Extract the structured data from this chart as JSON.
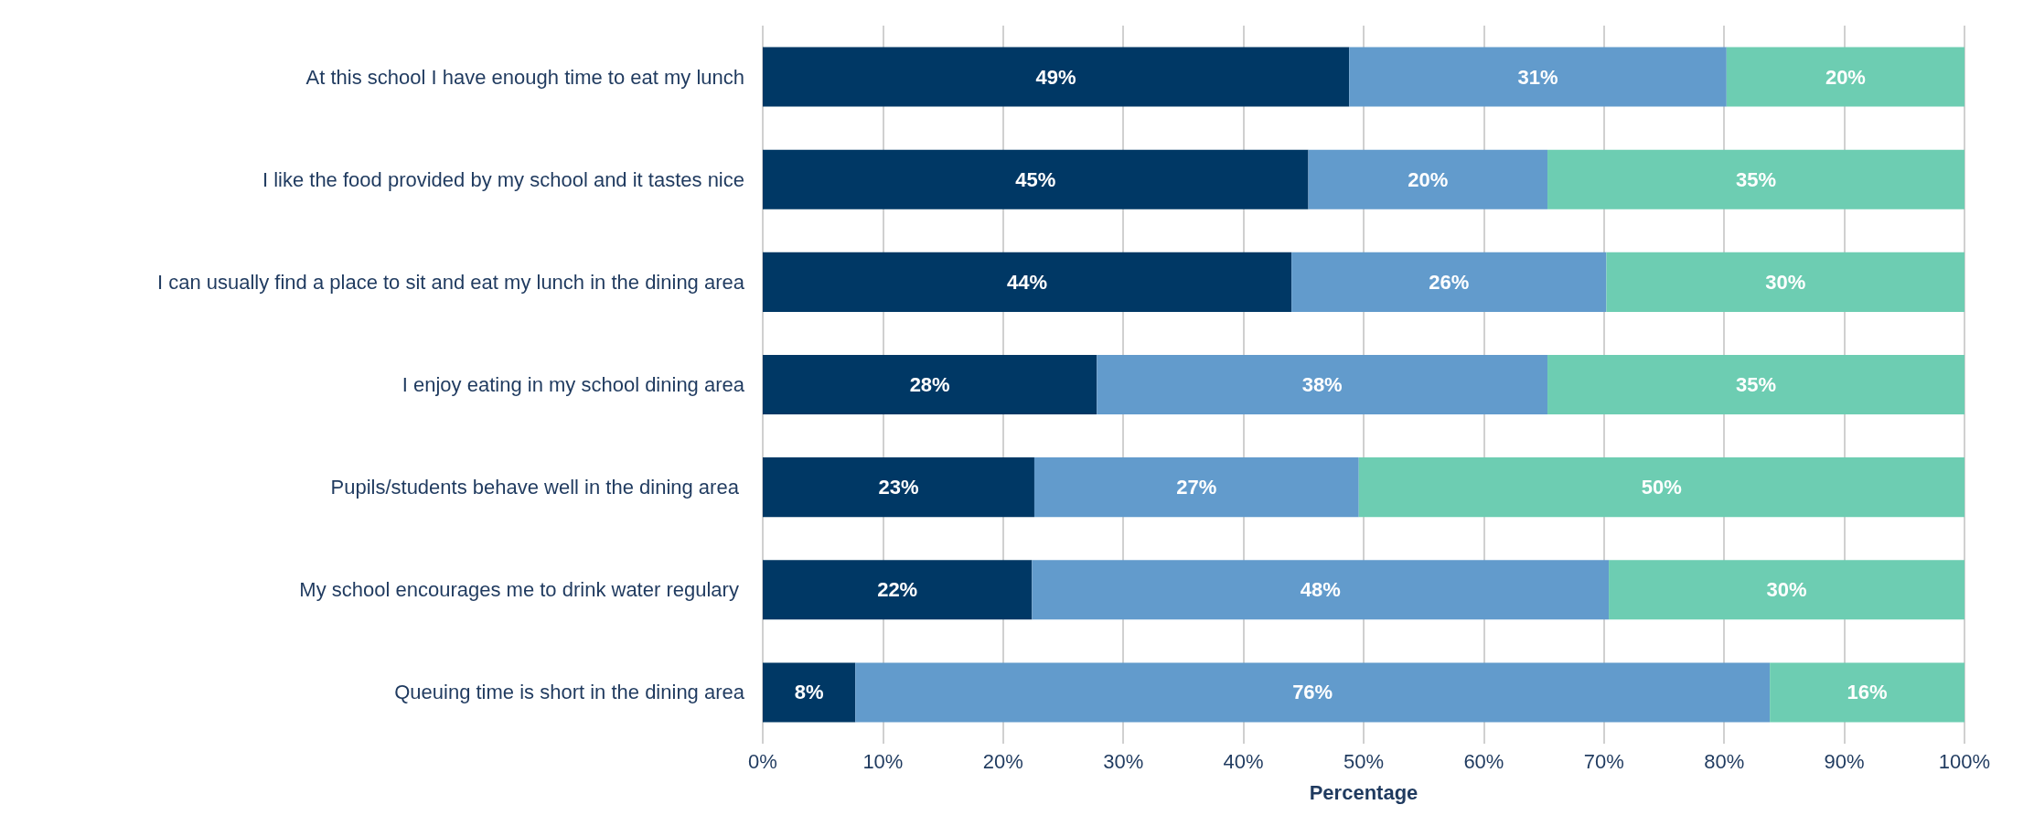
{
  "chart_data": {
    "type": "bar",
    "orientation": "horizontal",
    "stacked": true,
    "xlabel": "Percentage",
    "categories": [
      "At this school I have enough time to eat my lunch",
      "I like the food provided by my school and it tastes nice",
      "I can usually find a place to sit and eat my lunch in the dining area",
      "I enjoy eating in my school dining area",
      "Pupils/students behave well in the dining area ",
      "My school encourages me to drink water regulary ",
      "Queuing time is short in the dining area"
    ],
    "series": [
      {
        "color": "#003865",
        "values": [
          48.8,
          45.4,
          44.0,
          27.8,
          22.6,
          22.4,
          7.7
        ],
        "value_labels": [
          "49%",
          "45%",
          "44%",
          "28%",
          "23%",
          "22%",
          "8%"
        ]
      },
      {
        "color": "#629bcc",
        "values": [
          31.4,
          19.9,
          26.2,
          37.5,
          27.0,
          48.0,
          76.1
        ],
        "value_labels": [
          "31%",
          "20%",
          "26%",
          "38%",
          "27%",
          "48%",
          "76%"
        ]
      },
      {
        "color": "#6dcdb2",
        "values": [
          19.8,
          34.7,
          29.8,
          34.7,
          50.4,
          29.6,
          16.2
        ],
        "value_labels": [
          "20%",
          "35%",
          "30%",
          "35%",
          "50%",
          "30%",
          "16%"
        ]
      }
    ],
    "xlim": [
      0,
      100
    ],
    "xticks": [
      {
        "value": 0,
        "label": "0%"
      },
      {
        "value": 10,
        "label": "10%"
      },
      {
        "value": 20,
        "label": "20%"
      },
      {
        "value": 30,
        "label": "30%"
      },
      {
        "value": 40,
        "label": "40%"
      },
      {
        "value": 50,
        "label": "50%"
      },
      {
        "value": 60,
        "label": "60%"
      },
      {
        "value": 70,
        "label": "70%"
      },
      {
        "value": 80,
        "label": "80%"
      },
      {
        "value": 90,
        "label": "90%"
      },
      {
        "value": 100,
        "label": "100%"
      }
    ],
    "grid": "x"
  }
}
